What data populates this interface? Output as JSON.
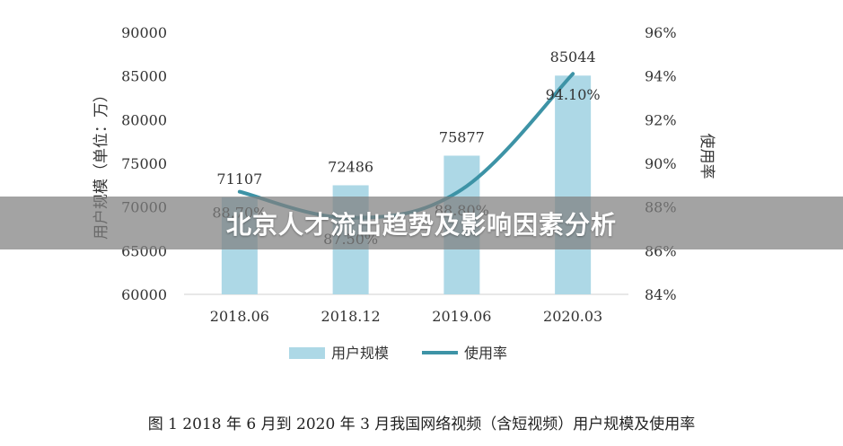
{
  "chart_data": {
    "type": "bar+line",
    "categories": [
      "2018.06",
      "2018.12",
      "2019.06",
      "2020.03"
    ],
    "series": [
      {
        "name": "用户规模",
        "kind": "bar",
        "axis": "left",
        "values": [
          71107,
          72486,
          75877,
          85044
        ],
        "labels": [
          "71107",
          "72486",
          "75877",
          "85044"
        ]
      },
      {
        "name": "使用率",
        "kind": "line",
        "axis": "right",
        "values": [
          88.7,
          87.5,
          88.8,
          94.1
        ],
        "labels": [
          "88.70%",
          "87.50%",
          "88.80%",
          "94.10%"
        ]
      }
    ],
    "y_left": {
      "label": "用户规模（单位：万）",
      "min": 60000,
      "max": 90000,
      "ticks": [
        "60000",
        "65000",
        "70000",
        "75000",
        "80000",
        "85000",
        "90000"
      ]
    },
    "y_right": {
      "label": "使用率",
      "min": 84,
      "max": 96,
      "ticks": [
        "84%",
        "86%",
        "88%",
        "90%",
        "92%",
        "94%",
        "96%"
      ]
    },
    "legend_position": "bottom",
    "caption": "图  1 2018 年 6 月到 2020 年 3 月我国网络视频（含短视频）用户规模及使用率"
  },
  "colors": {
    "bar": "#add8e6",
    "line": "#3d93a6",
    "banner_bg": "#808080"
  },
  "banner": {
    "title": "北京人才流出趋势及影响因素分析"
  }
}
